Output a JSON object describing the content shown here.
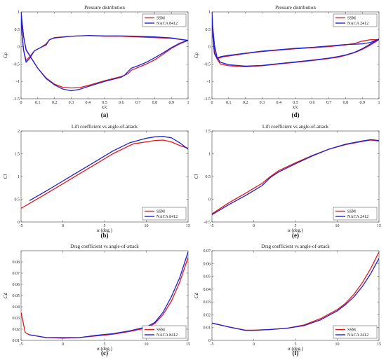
{
  "colors": {
    "ssm": "#e4151b",
    "naca": "#1f1fd8"
  },
  "chart_data": [
    {
      "id": "a",
      "type": "line",
      "panel_label": "(a)",
      "title": "Pressure distribution",
      "xlabel": "x/c",
      "ylabel": "Cp",
      "xlim": [
        0,
        1
      ],
      "ylim": [
        -1.5,
        1
      ],
      "xticks": [
        0,
        0.1,
        0.2,
        0.3,
        0.4,
        0.5,
        0.6,
        0.7,
        0.8,
        0.9,
        1
      ],
      "xtick_labels": [
        "0",
        "0.1",
        "0.2",
        "0.3",
        "0.4",
        "0.5",
        "0.6",
        "0.7",
        "0.8",
        "0.9",
        "1"
      ],
      "yticks": [
        -1.5,
        -1,
        -0.5,
        0,
        0.5,
        1
      ],
      "ytick_labels": [
        "-1.5",
        "-1",
        "-0.5",
        "0",
        "0.5",
        "1"
      ],
      "legend_loc": "top-right",
      "series": [
        {
          "name": "SSM",
          "color": "ssm",
          "closed": true,
          "x": [
            1.0,
            0.95,
            0.9,
            0.85,
            0.8,
            0.75,
            0.7,
            0.66,
            0.64,
            0.6,
            0.5,
            0.4,
            0.35,
            0.3,
            0.25,
            0.2,
            0.15,
            0.1,
            0.06,
            0.03,
            0.015,
            0.005,
            0.0,
            0.005,
            0.015,
            0.03,
            0.05,
            0.08,
            0.12,
            0.15,
            0.17,
            0.2,
            0.3,
            0.4,
            0.5,
            0.6,
            0.7,
            0.8,
            0.9,
            1.0
          ],
          "y": [
            0.18,
            0.08,
            -0.05,
            -0.22,
            -0.38,
            -0.5,
            -0.6,
            -0.68,
            -0.78,
            -0.86,
            -0.98,
            -1.12,
            -1.18,
            -1.19,
            -1.17,
            -1.08,
            -0.9,
            -0.62,
            -0.32,
            -0.1,
            0.3,
            0.75,
            0.98,
            0.4,
            -0.1,
            -0.4,
            -0.3,
            -0.12,
            -0.02,
            0.08,
            0.2,
            0.26,
            0.3,
            0.32,
            0.3,
            0.3,
            0.28,
            0.26,
            0.24,
            0.18
          ]
        },
        {
          "name": "NACA 8412",
          "color": "naca",
          "closed": true,
          "x": [
            1.0,
            0.95,
            0.9,
            0.85,
            0.8,
            0.75,
            0.7,
            0.66,
            0.64,
            0.62,
            0.6,
            0.5,
            0.4,
            0.35,
            0.3,
            0.25,
            0.2,
            0.15,
            0.1,
            0.06,
            0.03,
            0.015,
            0.005,
            0.0,
            0.005,
            0.015,
            0.03,
            0.05,
            0.08,
            0.12,
            0.15,
            0.17,
            0.2,
            0.3,
            0.4,
            0.5,
            0.6,
            0.7,
            0.8,
            0.9,
            1.0
          ],
          "y": [
            0.18,
            0.1,
            -0.03,
            -0.18,
            -0.32,
            -0.45,
            -0.55,
            -0.62,
            -0.72,
            -0.82,
            -0.88,
            -1.0,
            -1.15,
            -1.23,
            -1.27,
            -1.22,
            -1.1,
            -0.92,
            -0.62,
            -0.32,
            -0.08,
            0.3,
            0.75,
            1.0,
            0.4,
            -0.1,
            -0.45,
            -0.35,
            -0.12,
            -0.02,
            0.05,
            0.2,
            0.25,
            0.3,
            0.32,
            0.31,
            0.31,
            0.3,
            0.28,
            0.25,
            0.18
          ]
        }
      ]
    },
    {
      "id": "d",
      "type": "line",
      "panel_label": "(d)",
      "title": "Pressure distribution",
      "xlabel": "x/c",
      "ylabel": "Cp",
      "xlim": [
        0,
        1
      ],
      "ylim": [
        -1.5,
        1
      ],
      "xticks": [
        0,
        0.1,
        0.2,
        0.3,
        0.4,
        0.5,
        0.6,
        0.7,
        0.8,
        0.9,
        1
      ],
      "xtick_labels": [
        "0",
        "0.1",
        "0.2",
        "0.3",
        "0.4",
        "0.5",
        "0.6",
        "0.7",
        "0.8",
        "0.9",
        "1"
      ],
      "yticks": [
        -1.5,
        -1,
        -0.5,
        0,
        0.5,
        1
      ],
      "ytick_labels": [
        "-1.5",
        "-1",
        "-0.5",
        "0",
        "0.5",
        "1"
      ],
      "legend_loc": "top-right",
      "series": [
        {
          "name": "SSM",
          "color": "ssm",
          "closed": true,
          "x": [
            1.0,
            0.95,
            0.9,
            0.85,
            0.8,
            0.76,
            0.7,
            0.6,
            0.5,
            0.4,
            0.3,
            0.2,
            0.1,
            0.05,
            0.03,
            0.015,
            0.005,
            0.0,
            0.005,
            0.015,
            0.03,
            0.06,
            0.1,
            0.2,
            0.3,
            0.4,
            0.5,
            0.6,
            0.7,
            0.8,
            0.86,
            0.9,
            0.95,
            1.0
          ],
          "y": [
            0.2,
            0.05,
            -0.08,
            -0.18,
            -0.25,
            -0.3,
            -0.34,
            -0.4,
            -0.45,
            -0.5,
            -0.55,
            -0.58,
            -0.55,
            -0.5,
            -0.35,
            0.0,
            0.5,
            0.98,
            0.3,
            -0.2,
            -0.35,
            -0.3,
            -0.27,
            -0.2,
            -0.14,
            -0.1,
            -0.06,
            -0.03,
            0.0,
            0.05,
            0.1,
            0.16,
            0.2,
            0.2
          ]
        },
        {
          "name": "NACA 2412",
          "color": "naca",
          "closed": true,
          "x": [
            1.0,
            0.95,
            0.9,
            0.85,
            0.8,
            0.76,
            0.7,
            0.6,
            0.5,
            0.4,
            0.3,
            0.2,
            0.1,
            0.05,
            0.03,
            0.015,
            0.005,
            0.0,
            0.005,
            0.015,
            0.03,
            0.06,
            0.1,
            0.2,
            0.3,
            0.4,
            0.5,
            0.6,
            0.7,
            0.8,
            0.86,
            0.9,
            0.95,
            1.0
          ],
          "y": [
            0.22,
            0.08,
            -0.06,
            -0.17,
            -0.24,
            -0.28,
            -0.33,
            -0.39,
            -0.44,
            -0.49,
            -0.54,
            -0.56,
            -0.52,
            -0.45,
            -0.3,
            0.05,
            0.55,
            1.0,
            0.3,
            -0.2,
            -0.32,
            -0.28,
            -0.25,
            -0.19,
            -0.13,
            -0.09,
            -0.05,
            -0.02,
            0.02,
            0.06,
            0.07,
            0.08,
            0.12,
            0.22
          ]
        }
      ]
    },
    {
      "id": "b",
      "type": "line",
      "panel_label": "(b)",
      "title": "Lift coefficient vs angle-of-attack",
      "xlabel": "α (deg.)",
      "ylabel": "Cl",
      "xlim": [
        -5,
        15
      ],
      "ylim": [
        0,
        2
      ],
      "xticks": [
        -5,
        0,
        5,
        10,
        15
      ],
      "xtick_labels": [
        "-5",
        "0",
        "5",
        "10",
        "15"
      ],
      "yticks": [
        0,
        0.5,
        1,
        1.5,
        2
      ],
      "ytick_labels": [
        "0",
        "0.5",
        "1",
        "1.5",
        "2"
      ],
      "legend_loc": "bottom-right",
      "series": [
        {
          "name": "SSM",
          "color": "ssm",
          "x": [
            -5,
            -2,
            0,
            2,
            4,
            6,
            8,
            8.5,
            10,
            11,
            12,
            13,
            14,
            15
          ],
          "y": [
            0.3,
            0.62,
            0.84,
            1.06,
            1.28,
            1.5,
            1.68,
            1.72,
            1.76,
            1.79,
            1.8,
            1.76,
            1.68,
            1.62
          ]
        },
        {
          "name": "NACA 8412",
          "color": "naca",
          "x": [
            -4,
            -2,
            0,
            2,
            4,
            6,
            8,
            10,
            11,
            12,
            13,
            14,
            15
          ],
          "y": [
            0.47,
            0.68,
            0.9,
            1.12,
            1.34,
            1.56,
            1.74,
            1.84,
            1.87,
            1.88,
            1.85,
            1.74,
            1.6
          ]
        }
      ]
    },
    {
      "id": "e",
      "type": "line",
      "panel_label": "(e)",
      "title": "Lift coefficient vs angle-of-attack",
      "xlabel": "α (deg.)",
      "ylabel": "Cl",
      "xlim": [
        -5,
        15
      ],
      "ylim": [
        -0.5,
        1.5
      ],
      "xticks": [
        -5,
        0,
        5,
        10,
        15
      ],
      "xtick_labels": [
        "-5",
        "0",
        "5",
        "10",
        "15"
      ],
      "yticks": [
        -0.5,
        0,
        0.5,
        1,
        1.5
      ],
      "ytick_labels": [
        "-0.5",
        "0",
        "0.5",
        "1",
        "1.5"
      ],
      "legend_loc": "bottom-right",
      "series": [
        {
          "name": "SSM",
          "color": "ssm",
          "x": [
            -5,
            -3,
            -1,
            0,
            1,
            2,
            3,
            5,
            7,
            9,
            11,
            13,
            14,
            15
          ],
          "y": [
            -0.32,
            -0.08,
            0.13,
            0.24,
            0.35,
            0.5,
            0.63,
            0.8,
            0.96,
            1.1,
            1.2,
            1.27,
            1.3,
            1.28
          ]
        },
        {
          "name": "NACA 2412",
          "color": "naca",
          "x": [
            -5,
            -3,
            -1,
            0,
            1,
            2,
            3,
            5,
            7,
            9,
            11,
            13,
            14,
            15
          ],
          "y": [
            -0.34,
            -0.12,
            0.08,
            0.19,
            0.3,
            0.48,
            0.6,
            0.78,
            0.95,
            1.1,
            1.21,
            1.28,
            1.31,
            1.29
          ]
        }
      ]
    },
    {
      "id": "c",
      "type": "line",
      "panel_label": "(c)",
      "title": "Drag coefficient vs angle-of-attack",
      "xlabel": "α (deg.)",
      "ylabel": "Cd",
      "xlim": [
        -5,
        15
      ],
      "ylim": [
        0.01,
        0.09
      ],
      "xticks": [
        -5,
        0,
        5,
        10,
        15
      ],
      "xtick_labels": [
        "-5",
        "0",
        "5",
        "10",
        "15"
      ],
      "yticks": [
        0.01,
        0.02,
        0.03,
        0.04,
        0.05,
        0.06,
        0.07,
        0.08
      ],
      "ytick_labels": [
        "0.01",
        "0.02",
        "0.03",
        "0.04",
        "0.05",
        "0.06",
        "0.07",
        "0.08"
      ],
      "legend_loc": "bottom-right",
      "series": [
        {
          "name": "SSM",
          "color": "ssm",
          "x": [
            -5,
            -4.5,
            -4,
            -2,
            0,
            2,
            4,
            6,
            8,
            10,
            11,
            12,
            13,
            14,
            15
          ],
          "y": [
            0.035,
            0.017,
            0.015,
            0.0125,
            0.012,
            0.0125,
            0.014,
            0.0155,
            0.018,
            0.021,
            0.025,
            0.033,
            0.045,
            0.062,
            0.084
          ]
        },
        {
          "name": "NACA 8412",
          "color": "naca",
          "x": [
            -4,
            -2,
            0,
            2,
            4,
            6,
            8,
            10,
            11,
            12,
            13,
            14,
            15
          ],
          "y": [
            0.015,
            0.0125,
            0.0125,
            0.0125,
            0.0145,
            0.016,
            0.0185,
            0.022,
            0.026,
            0.035,
            0.049,
            0.066,
            0.089
          ]
        }
      ]
    },
    {
      "id": "f",
      "type": "line",
      "panel_label": "(f)",
      "title": "Drag coefficient vs angle-of-attack",
      "xlabel": "α (deg.)",
      "ylabel": "Cd",
      "xlim": [
        -5,
        15
      ],
      "ylim": [
        0,
        0.07
      ],
      "xticks": [
        -5,
        0,
        5,
        10,
        15
      ],
      "xtick_labels": [
        "-5",
        "0",
        "5",
        "10",
        "15"
      ],
      "yticks": [
        0,
        0.01,
        0.02,
        0.03,
        0.04,
        0.05,
        0.06,
        0.07
      ],
      "ytick_labels": [
        "0",
        "0.01",
        "0.02",
        "0.03",
        "0.04",
        "0.05",
        "0.06",
        "0.07"
      ],
      "legend_loc": "bottom-right",
      "series": [
        {
          "name": "SSM",
          "color": "ssm",
          "x": [
            -5,
            -3,
            -1,
            0,
            2,
            4,
            6,
            8,
            10,
            11,
            12,
            13,
            14,
            15
          ],
          "y": [
            0.0135,
            0.0105,
            0.008,
            0.008,
            0.0085,
            0.0095,
            0.012,
            0.017,
            0.024,
            0.029,
            0.036,
            0.045,
            0.056,
            0.069
          ]
        },
        {
          "name": "NACA 2412",
          "color": "naca",
          "x": [
            -5,
            -3,
            -1,
            0,
            2,
            4,
            6,
            8,
            10,
            11,
            12,
            13,
            14,
            15
          ],
          "y": [
            0.0135,
            0.0105,
            0.0078,
            0.0078,
            0.0085,
            0.0095,
            0.0115,
            0.016,
            0.023,
            0.028,
            0.034,
            0.042,
            0.052,
            0.064
          ]
        }
      ]
    }
  ]
}
